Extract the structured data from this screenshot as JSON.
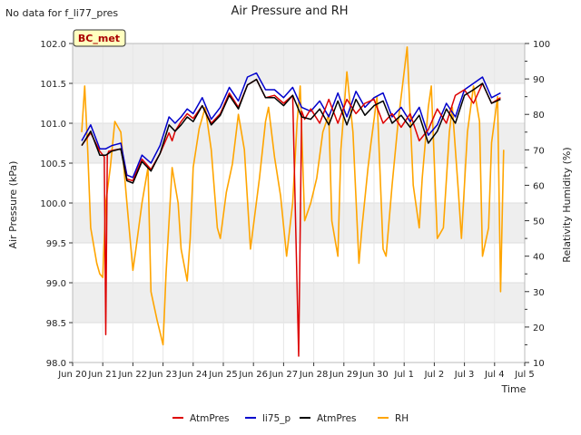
{
  "header": {
    "no_data_note": "No data for f_li77_pres",
    "badge": "BC_met"
  },
  "colors": {
    "AtmPres_red": "#dd0000",
    "li75_p": "#0000cc",
    "AtmPres_black": "#000000",
    "RH": "#ffa500",
    "band": "#eeeeee",
    "badge_bg": "#ffffc0"
  },
  "chart_data": {
    "type": "line",
    "title": "Air Pressure and RH",
    "xlabel": "Time",
    "ylabel_left": "Air Pressure (kPa)",
    "ylabel_right": "Relativity Humidity (%)",
    "xlim": [
      20,
      35
    ],
    "ylim_left": [
      98.0,
      102.0
    ],
    "ylim_right": [
      10,
      100
    ],
    "x_ticks": [
      {
        "x": 20,
        "label": "Jun 20"
      },
      {
        "x": 21,
        "label": "Jun 21"
      },
      {
        "x": 22,
        "label": "Jun 22"
      },
      {
        "x": 23,
        "label": "Jun 23"
      },
      {
        "x": 24,
        "label": "Jun 24"
      },
      {
        "x": 25,
        "label": "Jun 25"
      },
      {
        "x": 26,
        "label": "Jun 26"
      },
      {
        "x": 27,
        "label": "Jun 27"
      },
      {
        "x": 28,
        "label": "Jun 28"
      },
      {
        "x": 29,
        "label": "Jun 29"
      },
      {
        "x": 30,
        "label": "Jun 30"
      },
      {
        "x": 31,
        "label": "Jul 1"
      },
      {
        "x": 32,
        "label": "Jul 2"
      },
      {
        "x": 33,
        "label": "Jul 3"
      },
      {
        "x": 34,
        "label": "Jul 4"
      },
      {
        "x": 35,
        "label": "Jul 5"
      }
    ],
    "y_ticks_left": [
      "98.0",
      "98.5",
      "99.0",
      "99.5",
      "100.0",
      "100.5",
      "101.0",
      "101.5",
      "102.0"
    ],
    "y_ticks_right": [
      "10",
      "20",
      "30",
      "40",
      "50",
      "60",
      "70",
      "80",
      "90",
      "100"
    ],
    "grid": true,
    "legend_position": "bottom-center",
    "series": [
      {
        "name": "AtmPres",
        "axis": "left",
        "color": "#dd0000",
        "x": [
          20.3,
          20.6,
          20.9,
          21.05,
          21.1,
          21.15,
          21.2,
          21.6,
          21.8,
          22.0,
          22.3,
          22.6,
          22.9,
          23.2,
          23.3,
          23.4,
          23.6,
          23.8,
          24.0,
          24.3,
          24.6,
          24.9,
          25.2,
          25.5,
          25.8,
          26.1,
          26.4,
          26.7,
          27.0,
          27.3,
          27.5,
          27.6,
          27.65,
          27.7,
          27.9,
          28.2,
          28.5,
          28.8,
          29.1,
          29.4,
          29.7,
          30.0,
          30.3,
          30.6,
          30.9,
          31.2,
          31.5,
          31.8,
          32.1,
          32.4,
          32.7,
          33.0,
          33.3,
          33.6,
          33.9,
          34.2
        ],
        "y": [
          100.72,
          100.88,
          100.65,
          100.58,
          98.35,
          100.6,
          100.65,
          100.68,
          100.3,
          100.28,
          100.55,
          100.42,
          100.62,
          100.88,
          100.78,
          100.9,
          101.02,
          101.12,
          101.06,
          101.22,
          101.0,
          101.12,
          101.38,
          101.2,
          101.48,
          101.55,
          101.32,
          101.35,
          101.25,
          101.35,
          98.08,
          101.15,
          101.1,
          101.05,
          101.18,
          101.0,
          101.3,
          101.0,
          101.3,
          101.12,
          101.25,
          101.3,
          101.0,
          101.12,
          100.95,
          101.12,
          100.78,
          100.92,
          101.18,
          101.0,
          101.35,
          101.42,
          101.25,
          101.5,
          101.25,
          101.32
        ]
      },
      {
        "name": "li75_p",
        "axis": "left",
        "color": "#0000cc",
        "x": [
          20.3,
          20.6,
          20.9,
          21.1,
          21.3,
          21.6,
          21.8,
          22.0,
          22.3,
          22.6,
          22.9,
          23.2,
          23.4,
          23.6,
          23.8,
          24.0,
          24.3,
          24.6,
          24.9,
          25.2,
          25.5,
          25.8,
          26.1,
          26.4,
          26.7,
          27.0,
          27.3,
          27.6,
          27.9,
          28.2,
          28.5,
          28.8,
          29.1,
          29.4,
          29.7,
          30.0,
          30.3,
          30.6,
          30.9,
          31.2,
          31.5,
          31.8,
          32.1,
          32.4,
          32.7,
          33.0,
          33.3,
          33.6,
          33.9,
          34.2
        ],
        "y": [
          100.78,
          100.98,
          100.68,
          100.68,
          100.72,
          100.75,
          100.35,
          100.32,
          100.6,
          100.5,
          100.72,
          101.08,
          101.0,
          101.08,
          101.18,
          101.12,
          101.32,
          101.05,
          101.2,
          101.45,
          101.28,
          101.58,
          101.63,
          101.42,
          101.42,
          101.32,
          101.45,
          101.2,
          101.15,
          101.28,
          101.08,
          101.38,
          101.08,
          101.4,
          101.2,
          101.32,
          101.38,
          101.08,
          101.2,
          101.02,
          101.2,
          100.85,
          100.98,
          101.25,
          101.08,
          101.42,
          101.5,
          101.58,
          101.32,
          101.38
        ]
      },
      {
        "name": "AtmPres",
        "axis": "left",
        "color": "#000000",
        "x": [
          20.3,
          20.6,
          20.9,
          21.1,
          21.3,
          21.6,
          21.8,
          22.0,
          22.3,
          22.6,
          22.9,
          23.2,
          23.4,
          23.6,
          23.8,
          24.0,
          24.3,
          24.6,
          24.9,
          25.2,
          25.5,
          25.8,
          26.1,
          26.4,
          26.7,
          27.0,
          27.3,
          27.6,
          27.9,
          28.2,
          28.5,
          28.8,
          29.1,
          29.4,
          29.7,
          30.0,
          30.3,
          30.6,
          30.9,
          31.2,
          31.5,
          31.8,
          32.1,
          32.4,
          32.7,
          33.0,
          33.3,
          33.6,
          33.9,
          34.2
        ],
        "y": [
          100.72,
          100.9,
          100.6,
          100.6,
          100.65,
          100.68,
          100.28,
          100.25,
          100.52,
          100.4,
          100.62,
          100.98,
          100.9,
          100.98,
          101.08,
          101.02,
          101.22,
          100.98,
          101.1,
          101.35,
          101.18,
          101.48,
          101.55,
          101.32,
          101.32,
          101.22,
          101.35,
          101.08,
          101.05,
          101.18,
          100.98,
          101.28,
          100.98,
          101.3,
          101.1,
          101.22,
          101.28,
          101.0,
          101.1,
          100.95,
          101.1,
          100.75,
          100.9,
          101.18,
          101.0,
          101.35,
          101.42,
          101.5,
          101.25,
          101.3
        ]
      },
      {
        "name": "RH",
        "axis": "right",
        "color": "#ffa500",
        "x": [
          20.3,
          20.4,
          20.5,
          20.6,
          20.8,
          20.9,
          21.0,
          21.1,
          21.25,
          21.4,
          21.6,
          21.8,
          22.0,
          22.1,
          22.3,
          22.5,
          22.6,
          22.8,
          23.0,
          23.1,
          23.3,
          23.5,
          23.6,
          23.8,
          23.9,
          24.0,
          24.2,
          24.4,
          24.6,
          24.8,
          24.9,
          25.1,
          25.3,
          25.5,
          25.7,
          25.9,
          26.2,
          26.4,
          26.5,
          26.7,
          26.9,
          27.1,
          27.3,
          27.45,
          27.55,
          27.7,
          27.9,
          28.1,
          28.3,
          28.5,
          28.6,
          28.8,
          28.9,
          29.1,
          29.3,
          29.5,
          29.6,
          29.8,
          29.9,
          30.1,
          30.3,
          30.4,
          30.6,
          30.8,
          30.9,
          31.1,
          31.3,
          31.5,
          31.6,
          31.8,
          31.9,
          32.1,
          32.3,
          32.5,
          32.6,
          32.8,
          32.9,
          33.1,
          33.3,
          33.5,
          33.6,
          33.8,
          33.9,
          34.1,
          34.2,
          34.3
        ],
        "y": [
          75,
          88,
          70,
          48,
          38,
          35,
          34,
          55,
          65,
          78,
          75,
          55,
          36,
          42,
          55,
          65,
          30,
          22,
          15,
          35,
          65,
          55,
          42,
          33,
          45,
          65,
          76,
          82,
          70,
          48,
          45,
          58,
          66,
          80,
          70,
          42,
          62,
          78,
          82,
          68,
          57,
          40,
          55,
          78,
          88,
          50,
          55,
          62,
          75,
          80,
          50,
          40,
          70,
          92,
          75,
          38,
          48,
          65,
          72,
          85,
          42,
          40,
          60,
          78,
          85,
          99,
          60,
          48,
          62,
          82,
          88,
          45,
          48,
          75,
          82,
          58,
          45,
          75,
          88,
          78,
          40,
          48,
          72,
          85,
          30,
          70
        ]
      }
    ]
  }
}
